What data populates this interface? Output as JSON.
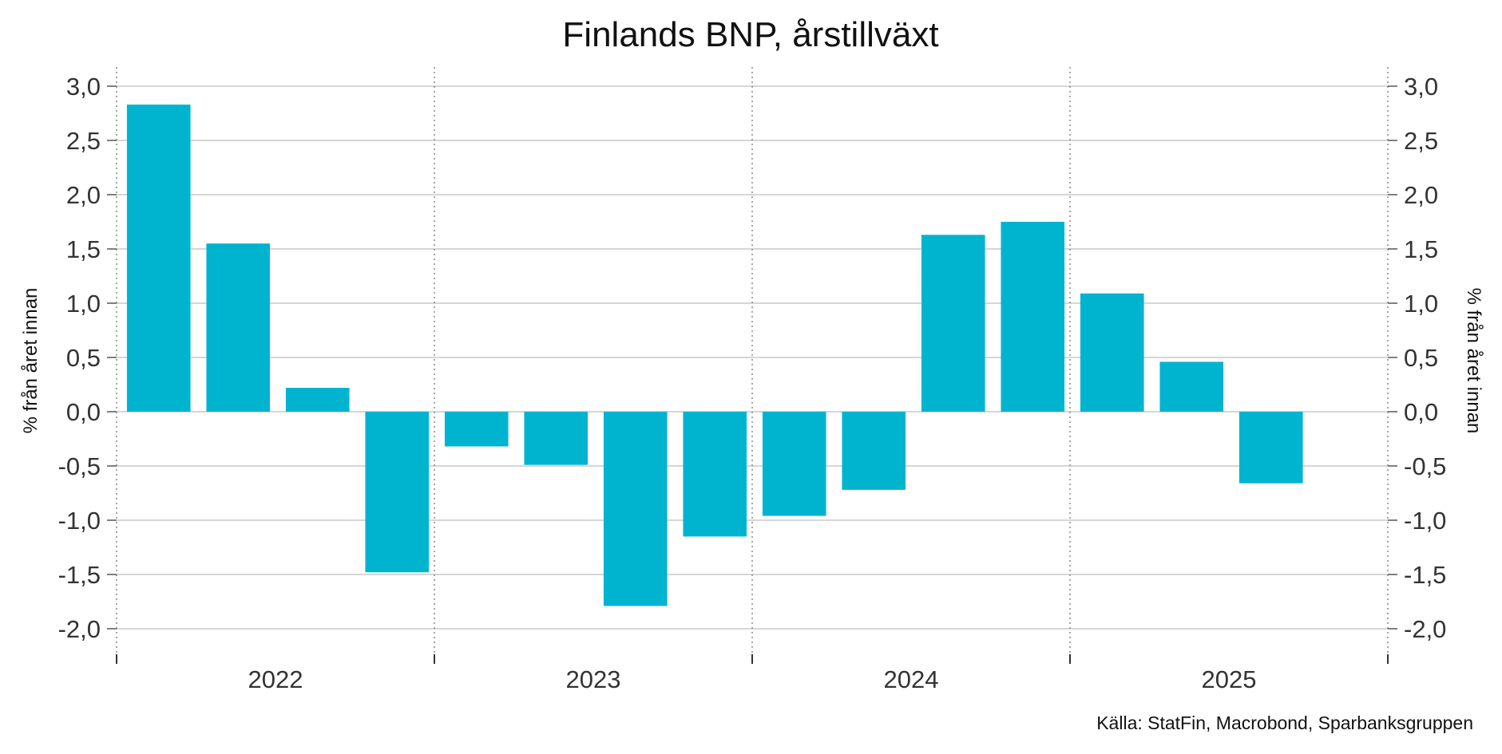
{
  "chart_data": {
    "type": "bar",
    "title": "Finlands BNP, årstillväxt",
    "ylabel_left": "% från året innan",
    "ylabel_right": "% från året innan",
    "source": "Källa: StatFin, Macrobond, Sparbanksgruppen",
    "ylim": [
      -2.2,
      3.2
    ],
    "yticks": [
      3.0,
      2.5,
      2.0,
      1.5,
      1.0,
      0.5,
      0.0,
      -0.5,
      -1.0,
      -1.5,
      -2.0
    ],
    "ytick_labels": [
      "3,0",
      "2,5",
      "2,0",
      "1,5",
      "1,0",
      "0,5",
      "0,0",
      "-0,5",
      "-1,0",
      "-1,5",
      "-2,0"
    ],
    "years": [
      "2022",
      "2023",
      "2024",
      "2025"
    ],
    "quarters_per_year": 4,
    "values": [
      2.83,
      1.55,
      0.22,
      -1.48,
      -0.32,
      -0.49,
      -1.79,
      -1.15,
      -0.96,
      -0.72,
      1.63,
      1.75,
      1.09,
      0.46,
      -0.66
    ],
    "bar_color": "#00b4d0",
    "grid": true
  }
}
